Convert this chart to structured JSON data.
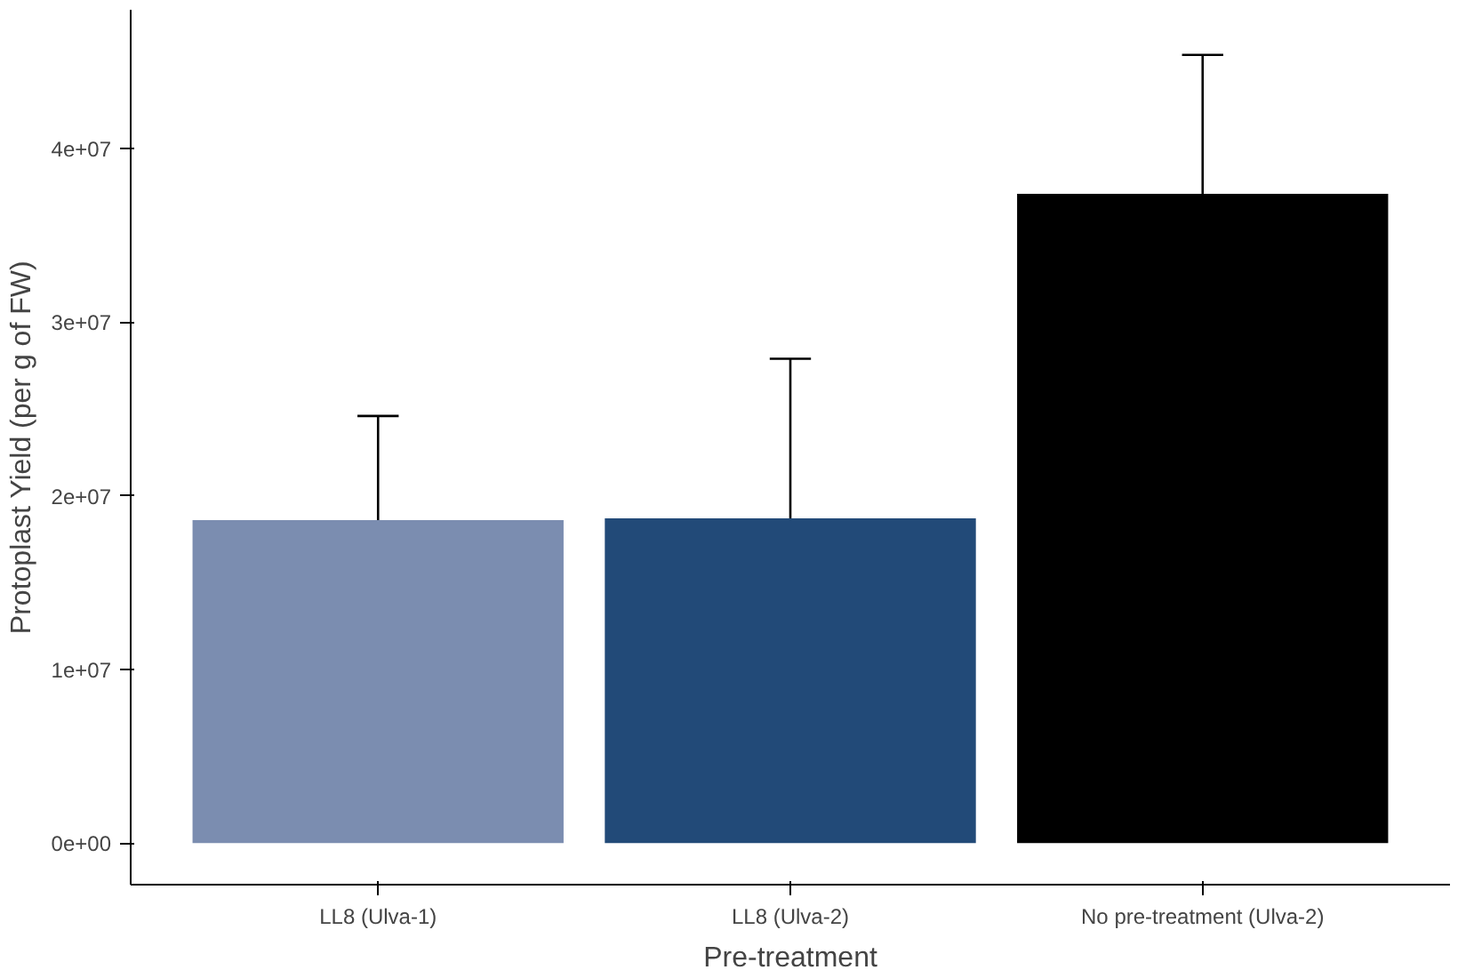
{
  "chart_data": {
    "type": "bar",
    "xlabel": "Pre-treatment",
    "ylabel": "Protoplast Yield (per g of FW)",
    "categories": [
      "LL8 (Ulva-1)",
      "LL8 (Ulva-2)",
      "No pre-treatment (Ulva-2)"
    ],
    "values": [
      18600000,
      18700000,
      37400000
    ],
    "colors": [
      "#7b8db0",
      "#224a78",
      "#000000"
    ],
    "errors": [
      [
        18600000,
        24600000
      ],
      [
        18700000,
        27900000
      ],
      [
        37400000,
        45400000
      ]
    ],
    "ylim": [
      -2400000,
      48000000
    ],
    "yticks": [
      {
        "value": 0,
        "label": "0e+00"
      },
      {
        "value": 10000000,
        "label": "1e+07"
      },
      {
        "value": 20000000,
        "label": "2e+07"
      },
      {
        "value": 30000000,
        "label": "3e+07"
      },
      {
        "value": 40000000,
        "label": "4e+07"
      }
    ],
    "grid": false
  }
}
